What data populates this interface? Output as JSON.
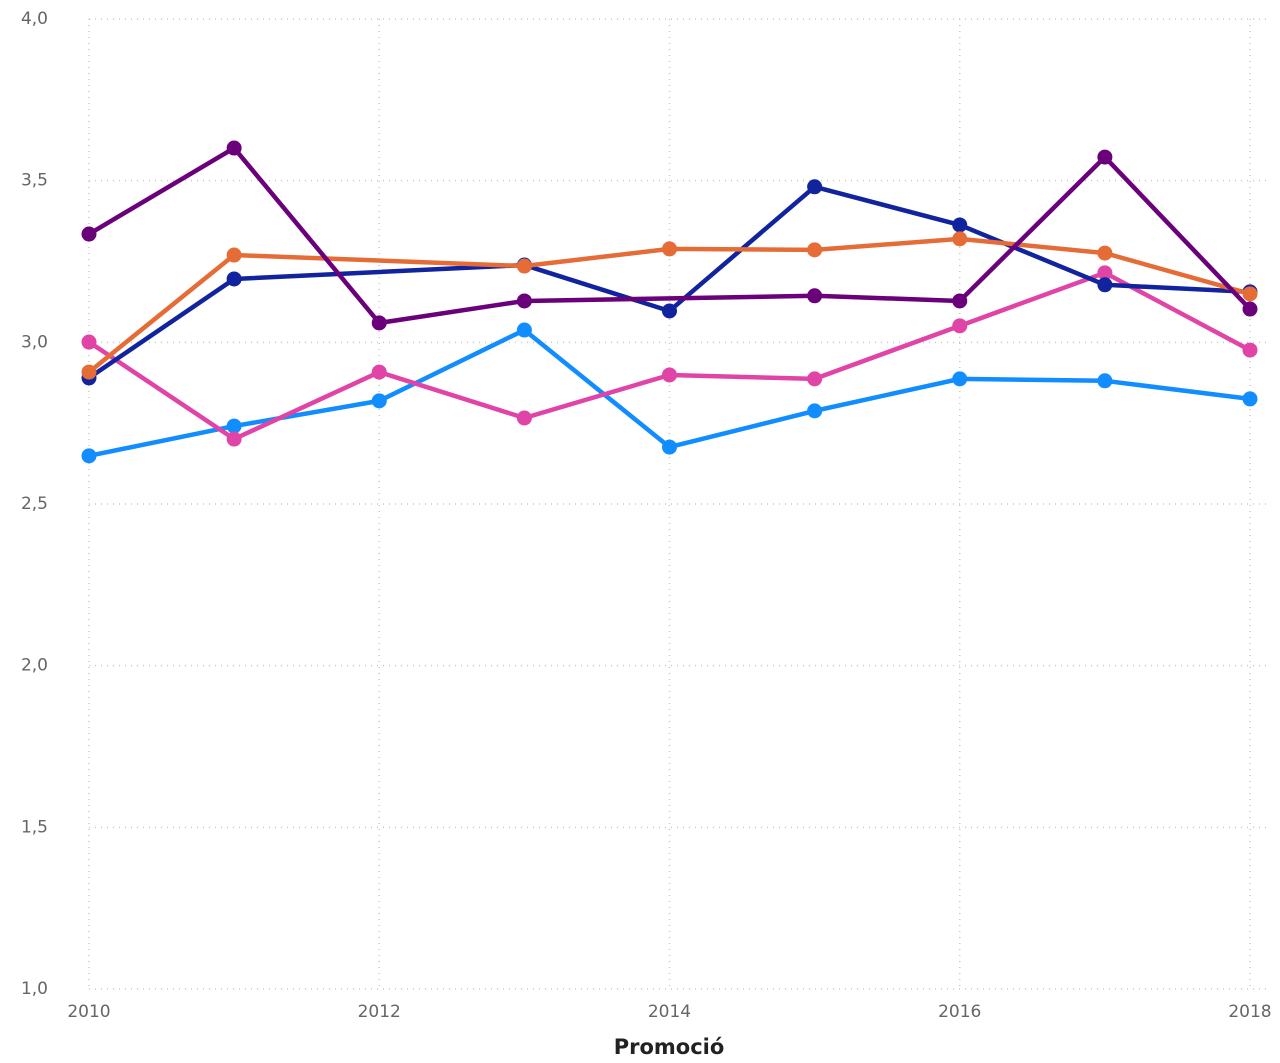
{
  "chart_data": {
    "type": "line",
    "xlabel": "Promoció",
    "xlim": [
      2010,
      2018
    ],
    "xticks": [
      2010,
      2012,
      2014,
      2016,
      2018
    ],
    "ylim": [
      1.0,
      4.0
    ],
    "yticks": [
      {
        "value": 1.0,
        "label": "1,0"
      },
      {
        "value": 1.5,
        "label": "1,5"
      },
      {
        "value": 2.0,
        "label": "2,0"
      },
      {
        "value": 2.5,
        "label": "2,5"
      },
      {
        "value": 3.0,
        "label": "3,0"
      },
      {
        "value": 3.5,
        "label": "3,5"
      },
      {
        "value": 4.0,
        "label": "4,0"
      }
    ],
    "grid": true,
    "series": [
      {
        "color": "#118dff",
        "x": [
          2010,
          2011,
          2012,
          2013,
          2014,
          2015,
          2016,
          2017,
          2018
        ],
        "values": [
          2.649,
          2.741,
          2.819,
          3.038,
          2.676,
          2.788,
          2.887,
          2.881,
          2.825
        ]
      },
      {
        "color": "#e044a7",
        "x": [
          2010,
          2011,
          2012,
          2013,
          2014,
          2015,
          2016,
          2017,
          2018
        ],
        "values": [
          3.001,
          2.701,
          2.908,
          2.766,
          2.899,
          2.887,
          3.051,
          3.215,
          2.976
        ]
      },
      {
        "color": "#12239e",
        "x": [
          2010,
          2011,
          2013,
          2014,
          2015,
          2016,
          2017,
          2018
        ],
        "values": [
          2.89,
          3.196,
          3.239,
          3.097,
          3.481,
          3.363,
          3.178,
          3.156
        ]
      },
      {
        "color": "#e66c37",
        "x": [
          2010,
          2011,
          2013,
          2014,
          2015,
          2016,
          2017,
          2018
        ],
        "values": [
          2.908,
          3.27,
          3.236,
          3.289,
          3.286,
          3.32,
          3.276,
          3.15
        ]
      },
      {
        "color": "#6b007b",
        "x": [
          2010,
          2011,
          2012,
          2013,
          2015,
          2016,
          2017,
          2018
        ],
        "values": [
          3.335,
          3.601,
          3.06,
          3.128,
          3.144,
          3.128,
          3.573,
          3.103
        ]
      }
    ]
  }
}
